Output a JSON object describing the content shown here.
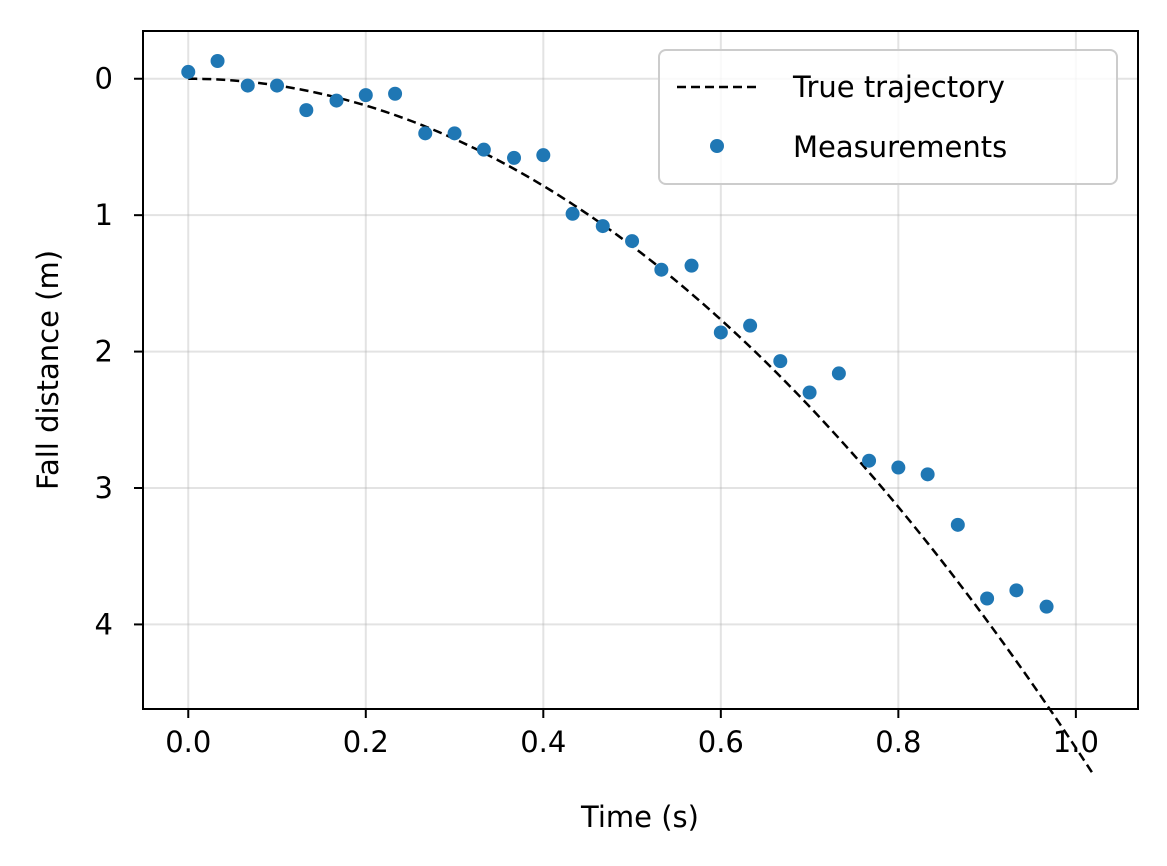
{
  "chart_data": {
    "type": "scatter",
    "title": "",
    "xlabel": "Time (s)",
    "ylabel": "Fall distance (m)",
    "xlim": [
      -0.051,
      1.07
    ],
    "ylim": [
      4.62,
      -0.35
    ],
    "y_inverted": true,
    "grid": true,
    "legend_position": "top-right",
    "x_ticks": [
      0.0,
      0.2,
      0.4,
      0.6,
      0.8,
      1.0
    ],
    "x_tick_labels": [
      "0.0",
      "0.2",
      "0.4",
      "0.6",
      "0.8",
      "1.0"
    ],
    "y_ticks": [
      0,
      1,
      2,
      3,
      4
    ],
    "y_tick_labels": [
      "0",
      "1",
      "2",
      "3",
      "4"
    ],
    "series": [
      {
        "name": "True trajectory",
        "kind": "line",
        "style": "dashed",
        "color": "#000000",
        "model": "d = 0.5 * g * t^2",
        "g": 9.81,
        "t_range": [
          0.0,
          1.02
        ]
      },
      {
        "name": "Measurements",
        "kind": "scatter",
        "color": "#1f77b4",
        "x": [
          0.0,
          0.033,
          0.067,
          0.1,
          0.133,
          0.167,
          0.2,
          0.233,
          0.267,
          0.3,
          0.333,
          0.367,
          0.4,
          0.433,
          0.467,
          0.5,
          0.533,
          0.567,
          0.6,
          0.633,
          0.667,
          0.7,
          0.733,
          0.767,
          0.8,
          0.833,
          0.867,
          0.9,
          0.933,
          0.967
        ],
        "y": [
          -0.05,
          -0.13,
          0.05,
          0.05,
          0.23,
          0.16,
          0.12,
          0.11,
          0.4,
          0.4,
          0.52,
          0.58,
          0.56,
          0.99,
          1.08,
          1.19,
          1.4,
          1.37,
          1.86,
          1.81,
          2.07,
          2.3,
          2.16,
          2.8,
          2.85,
          2.9,
          3.27,
          3.81,
          3.75,
          3.87
        ]
      }
    ]
  },
  "legend": {
    "true_trajectory_label": "True trajectory",
    "measurements_label": "Measurements"
  },
  "axes": {
    "xlabel": "Time (s)",
    "ylabel": "Fall distance (m)"
  }
}
